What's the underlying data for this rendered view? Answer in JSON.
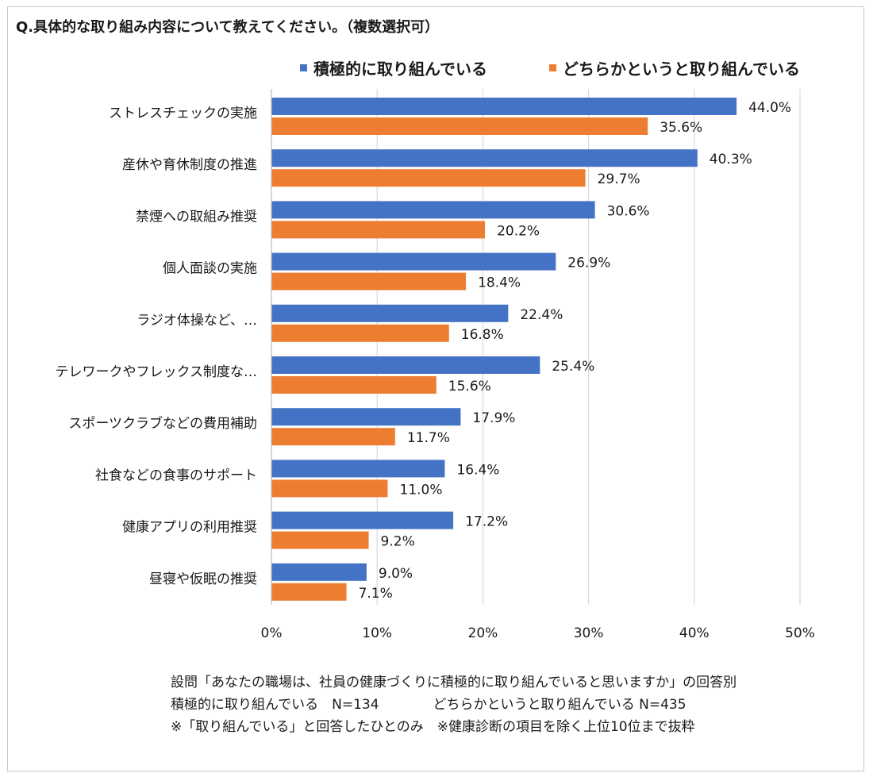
{
  "colors": {
    "series1": "#4472c4",
    "series2": "#ed7d31",
    "grid": "#d9d9d9"
  },
  "chart_data": {
    "type": "bar",
    "orientation": "horizontal",
    "title": "Q.具体的な取り組み内容について教えてください。（複数選択可）",
    "categories": [
      "ストレスチェックの実施",
      "産休や育休制度の推進",
      "禁煙への取組み推奨",
      "個人面談の実施",
      "ラジオ体操など、…",
      "テレワークやフレックス制度な…",
      "スポーツクラブなどの費用補助",
      "社食などの食事のサポート",
      "健康アプリの利用推奨",
      "昼寝や仮眠の推奨"
    ],
    "series": [
      {
        "name": "積極的に取り組んでいる",
        "values": [
          44.0,
          40.3,
          30.6,
          26.9,
          22.4,
          25.4,
          17.9,
          16.4,
          17.2,
          9.0
        ],
        "labels": [
          "44.0%",
          "40.3%",
          "30.6%",
          "26.9%",
          "22.4%",
          "25.4%",
          "17.9%",
          "16.4%",
          "17.2%",
          "9.0%"
        ]
      },
      {
        "name": "どちらかというと取り組んでいる",
        "values": [
          35.6,
          29.7,
          20.2,
          18.4,
          16.8,
          15.6,
          11.7,
          11.0,
          9.2,
          7.1
        ],
        "labels": [
          "35.6%",
          "29.7%",
          "20.2%",
          "18.4%",
          "16.8%",
          "15.6%",
          "11.7%",
          "11.0%",
          "9.2%",
          "7.1%"
        ]
      }
    ],
    "xlim": [
      0,
      50
    ],
    "xticks": [
      "0%",
      "10%",
      "20%",
      "30%",
      "40%",
      "50%"
    ],
    "grid": true,
    "legend_position": "top"
  },
  "notes": [
    "設問「あなたの職場は、社員の健康づくりに積極的に取り組んでいると思いますか」の回答別",
    "積極的に取り組んでいる　N=134　　　　どちらかというと取り組んでいる N=435",
    "※「取り組んでいる」と回答したひとのみ　※健康診断の項目を除く上位10位まで抜粋"
  ]
}
